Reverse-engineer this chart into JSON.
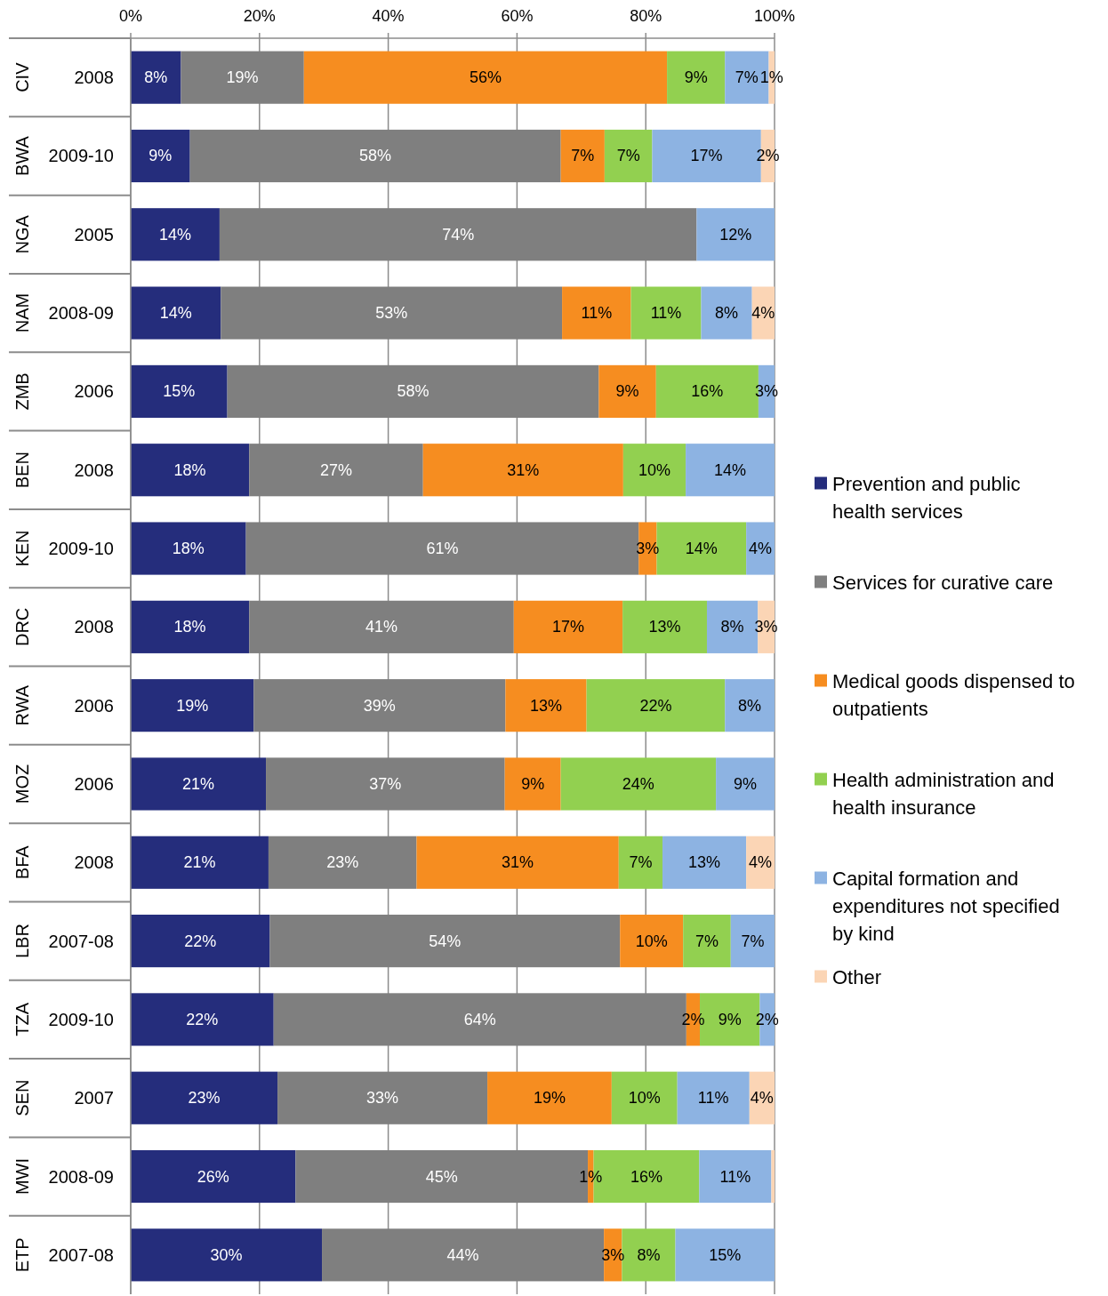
{
  "chart_data": {
    "type": "bar",
    "orientation": "horizontal",
    "stacked": true,
    "categories": [
      "CIV 2008",
      "BWA 2009-10",
      "NGA 2005",
      "NAM 2008-09",
      "ZMB 2006",
      "BEN 2008",
      "KEN 2009-10",
      "DRC 2008",
      "RWA 2006",
      "MOZ 2006",
      "BFA 2008",
      "LBR 2007-08",
      "TZA 2009-10",
      "SEN 2007",
      "MWI 2008-09",
      "ETP 2007-08"
    ],
    "series": [
      {
        "name": "Prevention and public health services",
        "color": "#252d7c",
        "values": [
          7.8,
          9.2,
          13.8,
          14,
          15,
          18.4,
          17.9,
          18.4,
          19.1,
          21,
          21.4,
          21.6,
          22.2,
          22.8,
          25.6,
          29.7
        ],
        "value_labels": [
          "8%",
          "9%",
          "14%",
          "14%",
          "15%",
          "18%",
          "18%",
          "18%",
          "19%",
          "21%",
          "21%",
          "22%",
          "22%",
          "23%",
          "26%",
          "30%"
        ]
      },
      {
        "name": "Services for curative care",
        "color": "#7f7f7f",
        "values": [
          19.1,
          57.6,
          74.1,
          53,
          57.7,
          27,
          61,
          41.1,
          39.1,
          37.1,
          23,
          54.4,
          64.1,
          32.6,
          45.4,
          43.8
        ],
        "value_labels": [
          "19%",
          "58%",
          "74%",
          "53%",
          "58%",
          "27%",
          "61%",
          "41%",
          "39%",
          "37%",
          "23%",
          "54%",
          "64%",
          "33%",
          "45%",
          "44%"
        ]
      },
      {
        "name": "Medical goods dispensed to outpatients",
        "color": "#f68d20",
        "values": [
          56.4,
          6.8,
          null,
          10.7,
          8.9,
          31.1,
          2.8,
          16.9,
          12.6,
          8.7,
          31.4,
          9.8,
          2.1,
          19.3,
          0.9,
          2.8
        ],
        "value_labels": [
          "56%",
          "7%",
          null,
          "11%",
          "9%",
          "31%",
          "3%",
          "17%",
          "13%",
          "9%",
          "31%",
          "10%",
          "2%",
          "19%",
          "1%",
          "3%"
        ]
      },
      {
        "name": "Health administration and health insurance",
        "color": "#92d050",
        "values": [
          9,
          7.4,
          null,
          10.9,
          15.9,
          9.7,
          13.9,
          13.1,
          21.5,
          24.1,
          6.8,
          7.4,
          9.3,
          10.2,
          16.4,
          8.3
        ],
        "value_labels": [
          "9%",
          "7%",
          null,
          "11%",
          "16%",
          "10%",
          "14%",
          "13%",
          "22%",
          "24%",
          "7%",
          "7%",
          "9%",
          "10%",
          "16%",
          "8%"
        ]
      },
      {
        "name": "Capital formation and expenditures not specified by kind",
        "color": "#8db3e2",
        "values": [
          6.8,
          16.9,
          12.1,
          7.9,
          2.5,
          13.8,
          4.4,
          7.9,
          7.7,
          9.1,
          13,
          6.8,
          2.3,
          11.2,
          11.2,
          15.4
        ],
        "value_labels": [
          "7%",
          "17%",
          "12%",
          "8%",
          "3%",
          "14%",
          "4%",
          "8%",
          "8%",
          "9%",
          "13%",
          "7%",
          "2%",
          "11%",
          "11%",
          "15%"
        ]
      },
      {
        "name": "Other",
        "color": "#fbd5b5",
        "values": [
          0.9,
          2.1,
          null,
          3.5,
          null,
          null,
          null,
          2.6,
          null,
          null,
          4.4,
          null,
          null,
          3.9,
          0.5,
          null
        ],
        "value_labels": [
          "1%",
          "2%",
          null,
          "4%",
          null,
          null,
          null,
          "3%",
          null,
          null,
          "4%",
          null,
          null,
          "4%",
          null,
          null
        ]
      }
    ],
    "xlim": [
      0,
      100
    ],
    "xticks": [
      {
        "value": 0,
        "label": "0%"
      },
      {
        "value": 20,
        "label": "20%"
      },
      {
        "value": 40,
        "label": "40%"
      },
      {
        "value": 60,
        "label": "60%"
      },
      {
        "value": 80,
        "label": "80%"
      },
      {
        "value": 100,
        "label": "100%"
      }
    ],
    "grid": "x",
    "legend": "right"
  }
}
